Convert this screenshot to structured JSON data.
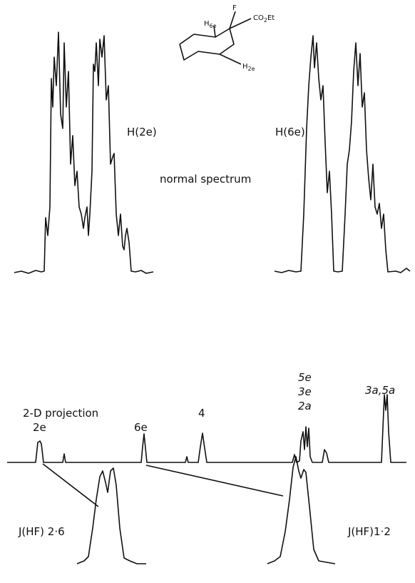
{
  "molecule": {
    "f": "F",
    "h6e": {
      "atom": "H",
      "sub": "6e"
    },
    "ester": {
      "a": "CO",
      "sub": "2",
      "b": "Et"
    },
    "h2e": {
      "atom": "H",
      "sub": "2e"
    }
  },
  "normal_spectrum": {
    "title": "normal spectrum",
    "left_label": "H(2e)",
    "right_label": "H(6e)"
  },
  "projection": {
    "title": "2-D projection",
    "peaks": [
      "2e",
      "6e",
      "4",
      "5e",
      "3e",
      "2a",
      "3a,5a"
    ]
  },
  "expansions": {
    "left": "J(HF) 2·6",
    "right": "J(HF)1·2"
  }
}
